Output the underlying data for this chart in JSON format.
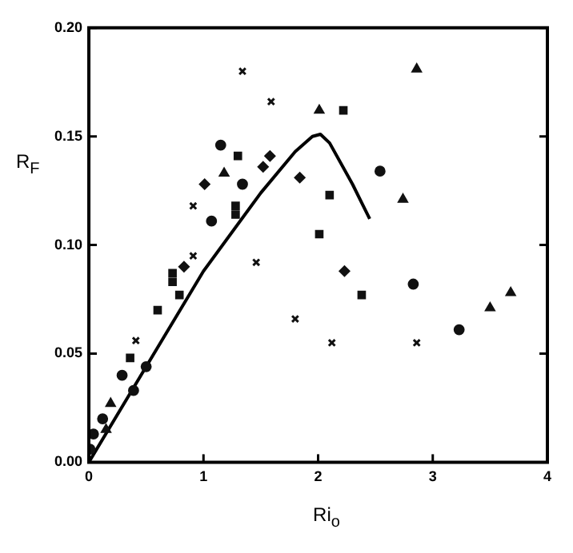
{
  "chart_data": {
    "type": "scatter",
    "xlabel": "Ri$_{o}$",
    "ylabel": "R$_{F}$",
    "xlim": [
      0,
      4
    ],
    "ylim": [
      0,
      0.2
    ],
    "xticks": [
      0,
      1,
      2,
      3,
      4
    ],
    "yticks": [
      {
        "value": 0,
        "label": "0.00"
      },
      {
        "value": 0.05,
        "label": "0.05"
      },
      {
        "value": 0.1,
        "label": "0.10"
      },
      {
        "value": 0.15,
        "label": "0.15"
      },
      {
        "value": 0.2,
        "label": "0.20"
      }
    ],
    "grid": false,
    "legend": false,
    "series": [
      {
        "marker": "circle",
        "color": "#111111",
        "x": [
          1.15,
          1.07,
          1.34,
          0.29,
          0.5,
          2.54,
          2.83,
          3.23,
          0.12,
          0.04,
          0.01,
          0.39
        ],
        "values": [
          0.146,
          0.111,
          0.128,
          0.04,
          0.044,
          0.134,
          0.082,
          0.061,
          0.02,
          0.013,
          0.006,
          0.033
        ]
      },
      {
        "marker": "square",
        "color": "#111111",
        "x": [
          1.3,
          1.28,
          1.28,
          0.6,
          0.73,
          0.73,
          0.79,
          2.22,
          2.1,
          2.01,
          2.38,
          0.36
        ],
        "values": [
          0.141,
          0.118,
          0.114,
          0.07,
          0.087,
          0.083,
          0.077,
          0.162,
          0.123,
          0.105,
          0.077,
          0.048
        ]
      },
      {
        "marker": "triangle",
        "color": "#111111",
        "x": [
          1.18,
          2.86,
          2.01,
          2.74,
          3.5,
          3.68,
          0.19,
          0.15
        ],
        "values": [
          0.133,
          0.181,
          0.162,
          0.121,
          0.071,
          0.078,
          0.027,
          0.015
        ]
      },
      {
        "marker": "diamond",
        "color": "#111111",
        "x": [
          1.01,
          1.84,
          2.23,
          1.58,
          1.52,
          0.83
        ],
        "values": [
          0.128,
          0.131,
          0.088,
          0.141,
          0.136,
          0.09
        ]
      },
      {
        "marker": "cross",
        "color": "#111111",
        "x": [
          1.34,
          0.91,
          1.8,
          0.41,
          1.59,
          0.91,
          2.86,
          1.46,
          2.12
        ],
        "values": [
          0.18,
          0.118,
          0.066,
          0.056,
          0.166,
          0.095,
          0.055,
          0.092,
          0.055
        ]
      },
      {
        "type": "line",
        "marker": "none",
        "color": "#000000",
        "x": [
          0,
          0.5,
          1,
          1.5,
          1.8,
          1.95,
          2.02,
          2.1,
          2.3,
          2.45
        ],
        "values": [
          0,
          0.044,
          0.088,
          0.124,
          0.143,
          0.15,
          0.151,
          0.147,
          0.128,
          0.112
        ]
      }
    ]
  }
}
